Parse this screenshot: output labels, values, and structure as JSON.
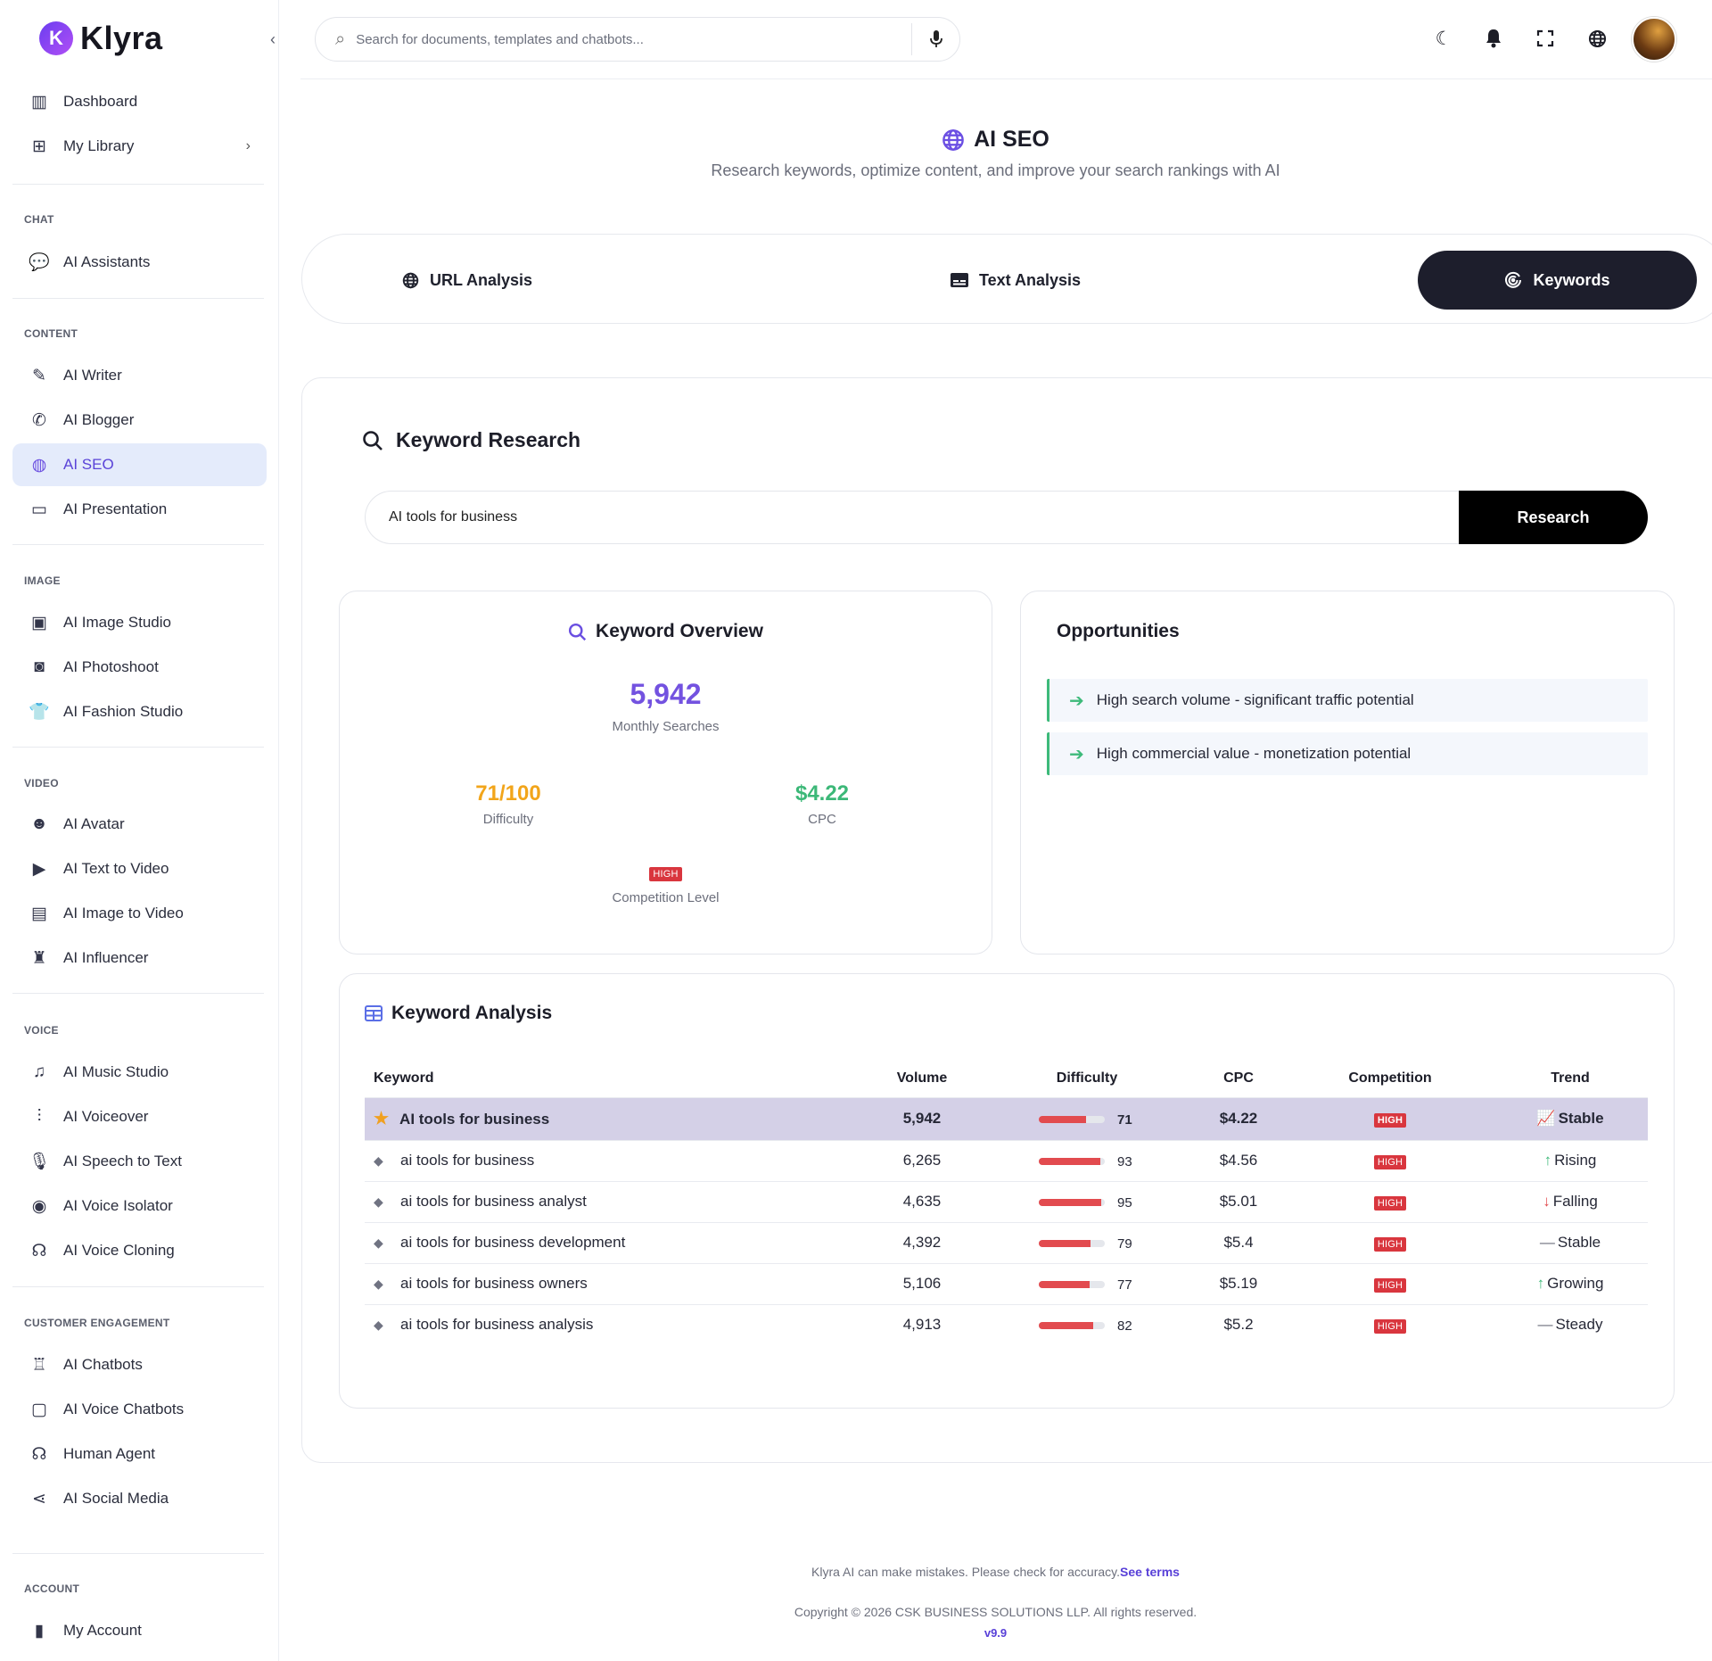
{
  "app": {
    "name": "Klyra"
  },
  "sidebar": {
    "top_items": [
      {
        "label": "Dashboard",
        "icon": "map-icon"
      },
      {
        "label": "My Library",
        "icon": "library-plus-icon"
      }
    ],
    "sections": [
      {
        "label": "CHAT",
        "items": [
          {
            "label": "AI Assistants",
            "icon": "chat-bubbles-icon"
          }
        ]
      },
      {
        "label": "CONTENT",
        "items": [
          {
            "label": "AI Writer",
            "icon": "pen-icon"
          },
          {
            "label": "AI Blogger",
            "icon": "blog-icon"
          },
          {
            "label": "AI SEO",
            "icon": "globe-seo-icon"
          },
          {
            "label": "AI Presentation",
            "icon": "presentation-icon"
          }
        ]
      },
      {
        "label": "IMAGE",
        "items": [
          {
            "label": "AI Image Studio",
            "icon": "image-gallery-icon"
          },
          {
            "label": "AI Photoshoot",
            "icon": "camera-icon"
          },
          {
            "label": "AI Fashion Studio",
            "icon": "shirt-icon"
          }
        ]
      },
      {
        "label": "VIDEO",
        "items": [
          {
            "label": "AI Avatar",
            "icon": "masks-icon"
          },
          {
            "label": "AI Text to Video",
            "icon": "video-plus-icon"
          },
          {
            "label": "AI Image to Video",
            "icon": "file-video-icon"
          },
          {
            "label": "AI Influencer",
            "icon": "influencer-icon"
          }
        ]
      },
      {
        "label": "VOICE",
        "items": [
          {
            "label": "AI Music Studio",
            "icon": "music-note-icon"
          },
          {
            "label": "AI Voiceover",
            "icon": "waveform-icon"
          },
          {
            "label": "AI Speech to Text",
            "icon": "microphone-icon"
          },
          {
            "label": "AI Voice Isolator",
            "icon": "target-icon"
          },
          {
            "label": "AI Voice Cloning",
            "icon": "user-voice-icon"
          }
        ]
      },
      {
        "label": "CUSTOMER ENGAGEMENT",
        "items": [
          {
            "label": "AI Chatbots",
            "icon": "robot-icon"
          },
          {
            "label": "AI Voice Chatbots",
            "icon": "voice-bot-icon"
          },
          {
            "label": "Human Agent",
            "icon": "headset-icon"
          },
          {
            "label": "AI Social Media",
            "icon": "share-icon"
          }
        ]
      },
      {
        "label": "ACCOUNT",
        "items": [
          {
            "label": "My Account",
            "icon": "account-icon"
          }
        ]
      }
    ],
    "active_item": "AI SEO"
  },
  "header": {
    "search_placeholder": "Search for documents, templates and chatbots..."
  },
  "page": {
    "title": "AI SEO",
    "subtitle": "Research keywords, optimize content, and improve your search rankings with AI"
  },
  "tabs": [
    {
      "label": "URL Analysis",
      "icon": "globe-icon"
    },
    {
      "label": "Text Analysis",
      "icon": "text-box-icon"
    },
    {
      "label": "Keywords",
      "icon": "target-spin-icon",
      "active": true
    }
  ],
  "research": {
    "title": "Keyword Research",
    "input_value": "AI tools for business",
    "button_label": "Research"
  },
  "overview": {
    "title": "Keyword Overview",
    "monthly_searches": "5,942",
    "monthly_searches_label": "Monthly Searches",
    "difficulty": "71/100",
    "difficulty_label": "Difficulty",
    "cpc": "$4.22",
    "cpc_label": "CPC",
    "competition": "HIGH",
    "competition_label": "Competition Level",
    "colors": {
      "searches": "#7352e0",
      "difficulty": "#f2a51a",
      "cpc": "#3cb878"
    }
  },
  "opportunities": {
    "title": "Opportunities",
    "items": [
      "High search volume - significant traffic potential",
      "High commercial value - monetization potential"
    ]
  },
  "analysis": {
    "title": "Keyword Analysis",
    "columns": [
      "Keyword",
      "Volume",
      "Difficulty",
      "CPC",
      "Competition",
      "Trend"
    ],
    "rows": [
      {
        "keyword": "AI tools for business",
        "volume": "5,942",
        "difficulty": 71,
        "cpc": "$4.22",
        "competition": "HIGH",
        "trend": "Stable",
        "trend_icon": "chart-line-icon",
        "featured": true
      },
      {
        "keyword": "ai tools for business",
        "volume": "6,265",
        "difficulty": 93,
        "cpc": "$4.56",
        "competition": "HIGH",
        "trend": "Rising",
        "trend_icon": "arrow-up-icon"
      },
      {
        "keyword": "ai tools for business analyst",
        "volume": "4,635",
        "difficulty": 95,
        "cpc": "$5.01",
        "competition": "HIGH",
        "trend": "Falling",
        "trend_icon": "arrow-down-icon"
      },
      {
        "keyword": "ai tools for business development",
        "volume": "4,392",
        "difficulty": 79,
        "cpc": "$5.4",
        "competition": "HIGH",
        "trend": "Stable",
        "trend_icon": "dash-icon"
      },
      {
        "keyword": "ai tools for business owners",
        "volume": "5,106",
        "difficulty": 77,
        "cpc": "$5.19",
        "competition": "HIGH",
        "trend": "Growing",
        "trend_icon": "arrow-up-icon"
      },
      {
        "keyword": "ai tools for business analysis",
        "volume": "4,913",
        "difficulty": 82,
        "cpc": "$5.2",
        "competition": "HIGH",
        "trend": "Steady",
        "trend_icon": "dash-icon"
      }
    ]
  },
  "footer": {
    "disclaimer": "Klyra AI can make mistakes. Please check for accuracy.",
    "terms_link": "See terms",
    "copyright": "Copyright © 2026 CSK BUSINESS SOLUTIONS LLP. All rights reserved.",
    "version": "v9.9"
  }
}
